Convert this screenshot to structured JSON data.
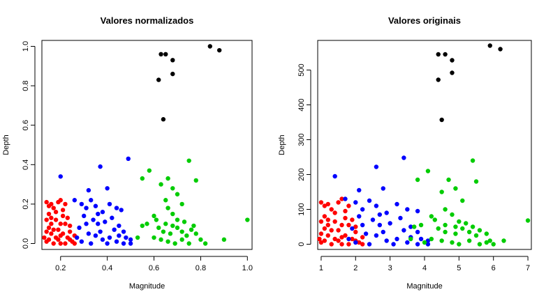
{
  "chart_data": [
    {
      "type": "scatter",
      "title": "Valores normalizados",
      "xlabel": "Magnitude",
      "ylabel": "Depth",
      "xlim": [
        0.12,
        1.02
      ],
      "ylim": [
        -0.03,
        1.03
      ],
      "xticks": [
        "0.2",
        "0.4",
        "0.6",
        "0.8",
        "1.0"
      ],
      "yticks": [
        "0.0",
        "0.2",
        "0.4",
        "0.6",
        "0.8",
        "1.0"
      ],
      "grid": false,
      "series": [
        {
          "color": "#ff0000",
          "points": [
            [
              0.14,
              0.21
            ],
            [
              0.15,
              0.19
            ],
            [
              0.16,
              0.2
            ],
            [
              0.17,
              0.18
            ],
            [
              0.15,
              0.15
            ],
            [
              0.14,
              0.12
            ],
            [
              0.16,
              0.13
            ],
            [
              0.15,
              0.08
            ],
            [
              0.14,
              0.06
            ],
            [
              0.16,
              0.05
            ],
            [
              0.15,
              0.02
            ],
            [
              0.14,
              0.01
            ],
            [
              0.17,
              0.0
            ],
            [
              0.18,
              0.03
            ],
            [
              0.19,
              0.07
            ],
            [
              0.2,
              0.1
            ],
            [
              0.21,
              0.14
            ],
            [
              0.19,
              0.21
            ],
            [
              0.2,
              0.22
            ],
            [
              0.22,
              0.2
            ],
            [
              0.21,
              0.17
            ],
            [
              0.23,
              0.13
            ],
            [
              0.22,
              0.1
            ],
            [
              0.24,
              0.06
            ],
            [
              0.23,
              0.03
            ],
            [
              0.25,
              0.01
            ],
            [
              0.26,
              0.04
            ],
            [
              0.24,
              0.09
            ],
            [
              0.2,
              0.0
            ],
            [
              0.18,
              0.12
            ],
            [
              0.16,
              0.1
            ],
            [
              0.19,
              0.02
            ],
            [
              0.21,
              0.05
            ],
            [
              0.17,
              0.07
            ],
            [
              0.22,
              0.0
            ],
            [
              0.26,
              0.0
            ],
            [
              0.13,
              0.03
            ],
            [
              0.18,
              0.16
            ],
            [
              0.2,
              0.04
            ],
            [
              0.24,
              0.02
            ]
          ]
        },
        {
          "color": "#0000ff",
          "points": [
            [
              0.2,
              0.34
            ],
            [
              0.32,
              0.27
            ],
            [
              0.37,
              0.39
            ],
            [
              0.4,
              0.28
            ],
            [
              0.49,
              0.43
            ],
            [
              0.26,
              0.22
            ],
            [
              0.29,
              0.2
            ],
            [
              0.31,
              0.18
            ],
            [
              0.33,
              0.22
            ],
            [
              0.35,
              0.19
            ],
            [
              0.38,
              0.16
            ],
            [
              0.41,
              0.2
            ],
            [
              0.44,
              0.18
            ],
            [
              0.46,
              0.17
            ],
            [
              0.3,
              0.14
            ],
            [
              0.34,
              0.12
            ],
            [
              0.36,
              0.1
            ],
            [
              0.39,
              0.11
            ],
            [
              0.42,
              0.13
            ],
            [
              0.45,
              0.09
            ],
            [
              0.47,
              0.06
            ],
            [
              0.28,
              0.08
            ],
            [
              0.32,
              0.05
            ],
            [
              0.35,
              0.04
            ],
            [
              0.38,
              0.02
            ],
            [
              0.41,
              0.03
            ],
            [
              0.44,
              0.01
            ],
            [
              0.47,
              0.0
            ],
            [
              0.5,
              0.02
            ],
            [
              0.29,
              0.01
            ],
            [
              0.33,
              0.0
            ],
            [
              0.37,
              0.06
            ],
            [
              0.43,
              0.07
            ],
            [
              0.5,
              0.0
            ],
            [
              0.27,
              0.03
            ],
            [
              0.31,
              0.1
            ],
            [
              0.36,
              0.15
            ],
            [
              0.4,
              0.0
            ],
            [
              0.45,
              0.04
            ],
            [
              0.48,
              0.03
            ]
          ]
        },
        {
          "color": "#00cc00",
          "points": [
            [
              0.58,
              0.37
            ],
            [
              0.55,
              0.33
            ],
            [
              0.63,
              0.3
            ],
            [
              0.66,
              0.33
            ],
            [
              0.68,
              0.28
            ],
            [
              0.75,
              0.42
            ],
            [
              0.78,
              0.32
            ],
            [
              0.65,
              0.22
            ],
            [
              0.7,
              0.25
            ],
            [
              0.72,
              0.2
            ],
            [
              0.66,
              0.18
            ],
            [
              0.68,
              0.15
            ],
            [
              0.61,
              0.12
            ],
            [
              0.57,
              0.1
            ],
            [
              0.55,
              0.09
            ],
            [
              0.62,
              0.08
            ],
            [
              0.64,
              0.06
            ],
            [
              0.67,
              0.05
            ],
            [
              0.7,
              0.08
            ],
            [
              0.72,
              0.06
            ],
            [
              0.74,
              0.04
            ],
            [
              0.76,
              0.07
            ],
            [
              0.78,
              0.05
            ],
            [
              0.6,
              0.03
            ],
            [
              0.63,
              0.02
            ],
            [
              0.66,
              0.01
            ],
            [
              0.69,
              0.0
            ],
            [
              0.72,
              0.02
            ],
            [
              0.75,
              0.0
            ],
            [
              0.8,
              0.02
            ],
            [
              0.82,
              0.0
            ],
            [
              1.0,
              0.12
            ],
            [
              0.9,
              0.02
            ],
            [
              0.53,
              0.03
            ],
            [
              0.7,
              0.12
            ],
            [
              0.65,
              0.1
            ],
            [
              0.73,
              0.11
            ],
            [
              0.77,
              0.09
            ],
            [
              0.6,
              0.14
            ],
            [
              0.68,
              0.09
            ]
          ]
        },
        {
          "color": "#000000",
          "points": [
            [
              0.62,
              0.83
            ],
            [
              0.63,
              0.96
            ],
            [
              0.65,
              0.96
            ],
            [
              0.68,
              0.93
            ],
            [
              0.68,
              0.86
            ],
            [
              0.64,
              0.63
            ],
            [
              0.84,
              1.0
            ],
            [
              0.88,
              0.98
            ]
          ]
        }
      ]
    },
    {
      "type": "scatter",
      "title": "Valores originais",
      "xlabel": "Magnitude",
      "ylabel": "Depth",
      "xlim": [
        0.9,
        7.1
      ],
      "ylim": [
        -15,
        585
      ],
      "xticks": [
        "1",
        "2",
        "3",
        "4",
        "5",
        "6",
        "7"
      ],
      "yticks": [
        "0",
        "100",
        "200",
        "300",
        "400",
        "500"
      ],
      "grid": false,
      "series": [
        {
          "color": "#ff0000",
          "points": [
            [
              1.0,
              120
            ],
            [
              1.1,
              110
            ],
            [
              1.2,
              115
            ],
            [
              1.3,
              100
            ],
            [
              1.1,
              80
            ],
            [
              1.0,
              65
            ],
            [
              1.2,
              70
            ],
            [
              1.1,
              45
            ],
            [
              1.0,
              30
            ],
            [
              1.2,
              25
            ],
            [
              1.1,
              10
            ],
            [
              1.0,
              5
            ],
            [
              1.3,
              0
            ],
            [
              1.4,
              15
            ],
            [
              1.5,
              40
            ],
            [
              1.6,
              55
            ],
            [
              1.7,
              75
            ],
            [
              1.5,
              120
            ],
            [
              1.6,
              130
            ],
            [
              1.8,
              110
            ],
            [
              1.7,
              95
            ],
            [
              1.9,
              70
            ],
            [
              1.8,
              55
            ],
            [
              2.0,
              35
            ],
            [
              1.9,
              15
            ],
            [
              2.1,
              5
            ],
            [
              2.2,
              20
            ],
            [
              2.0,
              50
            ],
            [
              1.6,
              0
            ],
            [
              1.4,
              65
            ],
            [
              1.2,
              55
            ],
            [
              1.5,
              10
            ],
            [
              1.7,
              25
            ],
            [
              1.3,
              40
            ],
            [
              1.8,
              0
            ],
            [
              2.2,
              0
            ],
            [
              0.95,
              15
            ],
            [
              1.4,
              90
            ],
            [
              1.6,
              20
            ],
            [
              2.0,
              10
            ]
          ]
        },
        {
          "color": "#0000ff",
          "points": [
            [
              1.4,
              195
            ],
            [
              2.6,
              222
            ],
            [
              3.4,
              248
            ],
            [
              2.1,
              155
            ],
            [
              2.8,
              160
            ],
            [
              1.7,
              130
            ],
            [
              2.0,
              120
            ],
            [
              2.2,
              100
            ],
            [
              2.4,
              125
            ],
            [
              2.6,
              110
            ],
            [
              2.9,
              90
            ],
            [
              3.2,
              115
            ],
            [
              3.5,
              100
            ],
            [
              3.8,
              95
            ],
            [
              2.1,
              80
            ],
            [
              2.5,
              70
            ],
            [
              2.7,
              55
            ],
            [
              3.0,
              60
            ],
            [
              3.3,
              75
            ],
            [
              3.6,
              50
            ],
            [
              3.8,
              35
            ],
            [
              1.9,
              45
            ],
            [
              2.3,
              30
            ],
            [
              2.6,
              25
            ],
            [
              2.9,
              10
            ],
            [
              3.2,
              15
            ],
            [
              3.5,
              5
            ],
            [
              3.8,
              0
            ],
            [
              4.1,
              10
            ],
            [
              2.0,
              5
            ],
            [
              2.4,
              0
            ],
            [
              2.8,
              35
            ],
            [
              3.4,
              40
            ],
            [
              4.1,
              0
            ],
            [
              1.8,
              15
            ],
            [
              2.2,
              55
            ],
            [
              2.7,
              85
            ],
            [
              3.1,
              0
            ],
            [
              3.6,
              20
            ],
            [
              3.9,
              15
            ]
          ]
        },
        {
          "color": "#00cc00",
          "points": [
            [
              3.8,
              185
            ],
            [
              4.1,
              210
            ],
            [
              4.7,
              185
            ],
            [
              5.4,
              240
            ],
            [
              5.5,
              180
            ],
            [
              4.5,
              150
            ],
            [
              4.9,
              160
            ],
            [
              5.1,
              125
            ],
            [
              4.6,
              100
            ],
            [
              4.8,
              85
            ],
            [
              4.3,
              70
            ],
            [
              3.9,
              55
            ],
            [
              3.7,
              50
            ],
            [
              4.4,
              45
            ],
            [
              4.6,
              35
            ],
            [
              4.9,
              30
            ],
            [
              5.1,
              45
            ],
            [
              5.3,
              35
            ],
            [
              5.5,
              25
            ],
            [
              5.6,
              40
            ],
            [
              5.8,
              30
            ],
            [
              4.2,
              15
            ],
            [
              4.5,
              10
            ],
            [
              4.8,
              5
            ],
            [
              5.0,
              0
            ],
            [
              5.3,
              10
            ],
            [
              5.6,
              0
            ],
            [
              5.9,
              10
            ],
            [
              6.0,
              0
            ],
            [
              7.0,
              68
            ],
            [
              6.3,
              10
            ],
            [
              3.6,
              15
            ],
            [
              5.0,
              65
            ],
            [
              4.6,
              55
            ],
            [
              5.2,
              60
            ],
            [
              5.4,
              50
            ],
            [
              4.2,
              80
            ],
            [
              4.9,
              50
            ],
            [
              4.0,
              5
            ],
            [
              5.8,
              5
            ]
          ]
        },
        {
          "color": "#000000",
          "points": [
            [
              4.4,
              472
            ],
            [
              4.4,
              545
            ],
            [
              4.6,
              545
            ],
            [
              4.8,
              528
            ],
            [
              4.8,
              492
            ],
            [
              4.5,
              357
            ],
            [
              5.9,
              570
            ],
            [
              6.2,
              560
            ]
          ]
        }
      ]
    }
  ]
}
